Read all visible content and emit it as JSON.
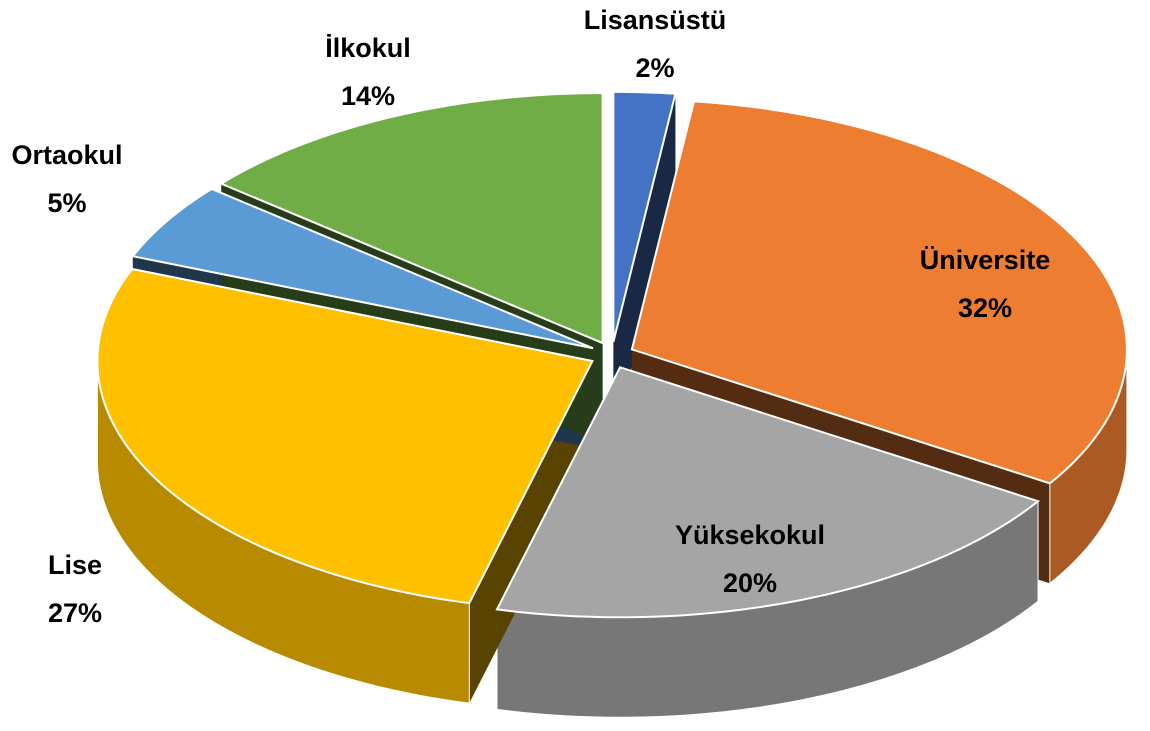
{
  "chart_data": {
    "type": "pie",
    "three_d": true,
    "exploded": true,
    "categories": [
      "Lisansüstü",
      "Üniversite",
      "Yüksekokul",
      "Lise",
      "Ortaokul",
      "İlkokul"
    ],
    "values": [
      2,
      32,
      20,
      27,
      5,
      14
    ],
    "value_labels": [
      "2%",
      "32%",
      "20%",
      "27%",
      "5%",
      "14%"
    ],
    "colors": [
      "#4472c4",
      "#ed7d31",
      "#a5a5a5",
      "#ffc000",
      "#5b9bd5",
      "#70ad47"
    ]
  }
}
